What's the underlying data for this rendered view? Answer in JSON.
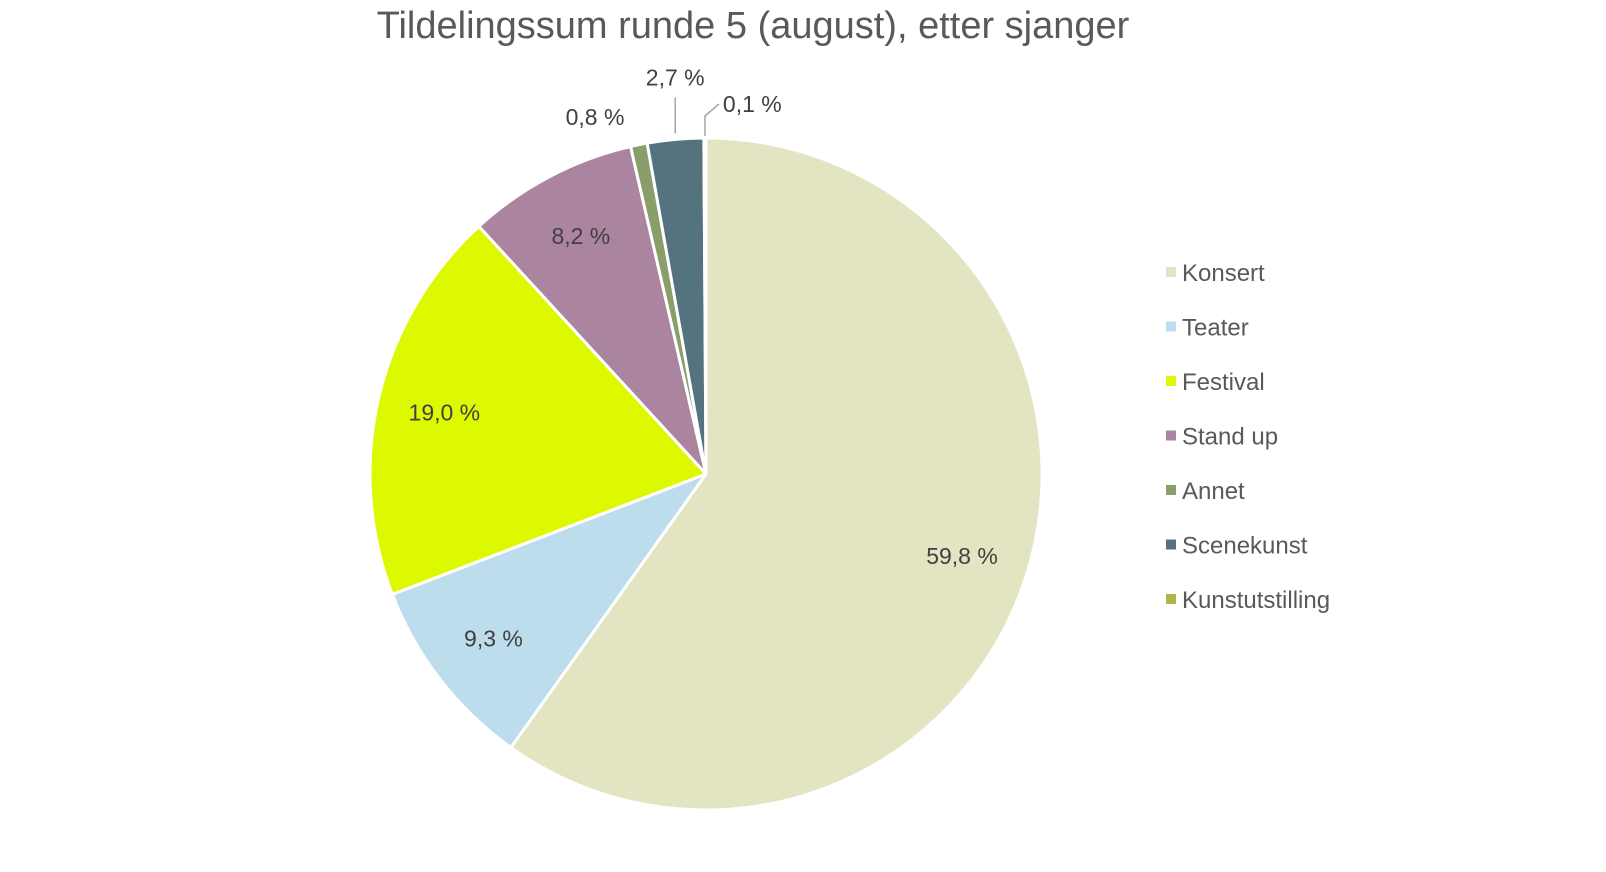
{
  "chart_data": {
    "type": "pie",
    "title": "Tildelingssum runde 5 (august), etter sjanger",
    "value_unit": "%",
    "legend_position": "right",
    "slices": [
      {
        "label": "Konsert",
        "value": 59.8,
        "display": "59,8 %",
        "color": "#E3E4C1"
      },
      {
        "label": "Teater",
        "value": 9.3,
        "display": "9,3 %",
        "color": "#BDDDED"
      },
      {
        "label": "Festival",
        "value": 19.0,
        "display": "19,0 %",
        "color": "#DDF900"
      },
      {
        "label": "Stand up",
        "value": 8.2,
        "display": "8,2 %",
        "color": "#AB849F"
      },
      {
        "label": "Annet",
        "value": 0.8,
        "display": "0,8 %",
        "color": "#8A9E6A"
      },
      {
        "label": "Scenekunst",
        "value": 2.7,
        "display": "2,7 %",
        "color": "#55737E"
      },
      {
        "label": "Kunstutstilling",
        "value": 0.1,
        "display": "0,1 %",
        "color": "#B1B547"
      }
    ]
  }
}
